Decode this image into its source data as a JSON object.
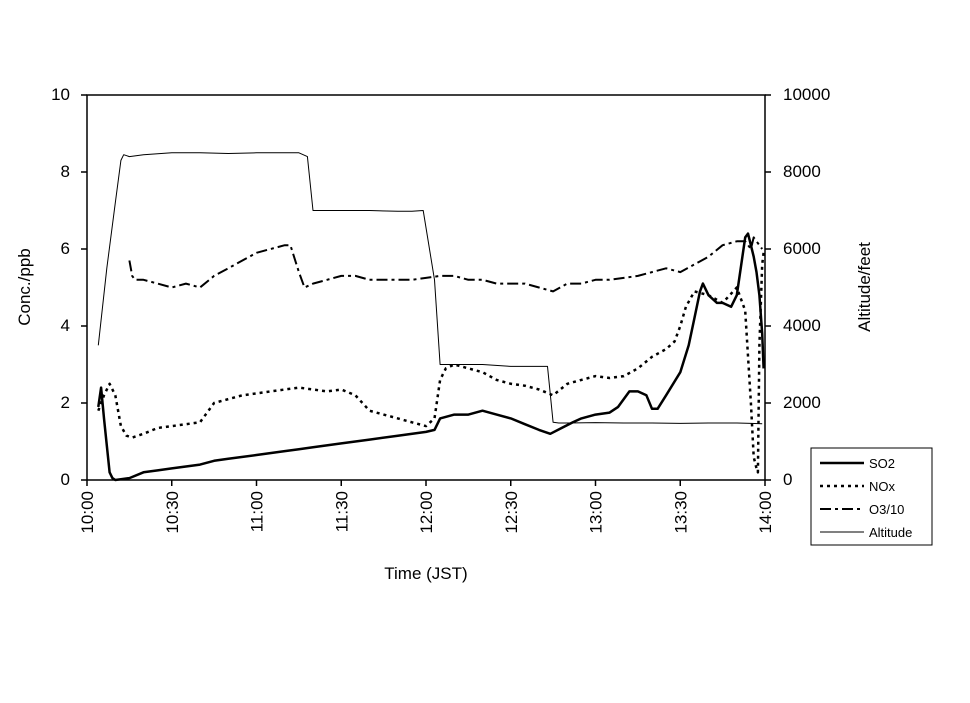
{
  "chart_data": {
    "type": "line",
    "xlabel": "Time (JST)",
    "ylabel_left": "Conc./ppb",
    "ylabel_right": "Altitude/feet",
    "x_ticks": [
      "10:00",
      "10:30",
      "11:00",
      "11:30",
      "12:00",
      "12:30",
      "13:00",
      "13:30",
      "14:00"
    ],
    "y_left_ticks": [
      "0",
      "2",
      "4",
      "6",
      "8",
      "10"
    ],
    "y_right_ticks": [
      "0",
      "2000",
      "4000",
      "6000",
      "8000",
      "10000"
    ],
    "xlim": [
      "10:00",
      "14:00"
    ],
    "ylim_left": [
      0,
      10
    ],
    "ylim_right": [
      0,
      10000
    ],
    "grid": false,
    "legend_position": "bottom-right",
    "series": [
      {
        "name": "SO2",
        "axis": "left",
        "style": "solid-thick",
        "x": [
          "10:04",
          "10:05",
          "10:06",
          "10:07",
          "10:08",
          "10:09",
          "10:10",
          "10:12",
          "10:15",
          "10:20",
          "10:25",
          "10:30",
          "10:35",
          "10:40",
          "10:45",
          "10:50",
          "11:00",
          "11:10",
          "11:15",
          "11:20",
          "11:30",
          "11:40",
          "11:50",
          "12:00",
          "12:03",
          "12:05",
          "12:10",
          "12:15",
          "12:20",
          "12:25",
          "12:30",
          "12:35",
          "12:40",
          "12:44",
          "12:48",
          "12:52",
          "12:55",
          "13:00",
          "13:05",
          "13:08",
          "13:12",
          "13:15",
          "13:18",
          "13:20",
          "13:22",
          "13:25",
          "13:30",
          "13:33",
          "13:35",
          "13:37",
          "13:38",
          "13:40",
          "13:43",
          "13:45",
          "13:48",
          "13:50",
          "13:52",
          "13:53",
          "13:54",
          "13:55",
          "13:56",
          "13:57",
          "13:58",
          "13:59",
          "13:59.5"
        ],
        "values": [
          1.9,
          2.4,
          1.6,
          0.9,
          0.2,
          0.05,
          0.0,
          0.02,
          0.05,
          0.2,
          0.25,
          0.3,
          0.35,
          0.4,
          0.5,
          0.55,
          0.65,
          0.75,
          0.8,
          0.85,
          0.95,
          1.05,
          1.15,
          1.25,
          1.3,
          1.6,
          1.7,
          1.7,
          1.8,
          1.7,
          1.6,
          1.45,
          1.3,
          1.2,
          1.35,
          1.5,
          1.6,
          1.7,
          1.75,
          1.9,
          2.3,
          2.3,
          2.2,
          1.85,
          1.85,
          2.2,
          2.8,
          3.5,
          4.2,
          4.9,
          5.1,
          4.8,
          4.6,
          4.6,
          4.5,
          4.8,
          5.8,
          6.3,
          6.4,
          6.1,
          5.8,
          5.4,
          4.8,
          3.8,
          2.9
        ]
      },
      {
        "name": "NOx",
        "axis": "left",
        "style": "dotted",
        "x": [
          "10:04",
          "10:06",
          "10:08",
          "10:10",
          "10:12",
          "10:14",
          "10:16",
          "10:20",
          "10:25",
          "10:30",
          "10:35",
          "10:40",
          "10:45",
          "10:50",
          "10:55",
          "11:00",
          "11:05",
          "11:10",
          "11:15",
          "11:20",
          "11:25",
          "11:30",
          "11:35",
          "11:40",
          "11:45",
          "11:50",
          "11:55",
          "12:00",
          "12:03",
          "12:05",
          "12:07",
          "12:10",
          "12:15",
          "12:20",
          "12:25",
          "12:30",
          "12:35",
          "12:40",
          "12:45",
          "12:50",
          "12:55",
          "13:00",
          "13:05",
          "13:10",
          "13:15",
          "13:20",
          "13:25",
          "13:28",
          "13:30",
          "13:32",
          "13:35",
          "13:40",
          "13:45",
          "13:50",
          "13:53",
          "13:55",
          "13:56",
          "13:57",
          "13:57.5",
          "13:58",
          "13:59",
          "13:59.5"
        ],
        "values": [
          1.8,
          2.2,
          2.5,
          2.2,
          1.4,
          1.15,
          1.1,
          1.2,
          1.35,
          1.4,
          1.45,
          1.5,
          2.0,
          2.1,
          2.2,
          2.25,
          2.3,
          2.35,
          2.4,
          2.35,
          2.3,
          2.35,
          2.2,
          1.8,
          1.7,
          1.6,
          1.5,
          1.4,
          1.6,
          2.6,
          2.9,
          3.0,
          2.9,
          2.8,
          2.6,
          2.5,
          2.45,
          2.35,
          2.2,
          2.5,
          2.6,
          2.7,
          2.65,
          2.7,
          2.9,
          3.2,
          3.4,
          3.6,
          4.0,
          4.5,
          4.9,
          4.8,
          4.6,
          5.0,
          4.4,
          2.0,
          0.6,
          0.3,
          0.2,
          3.5,
          5.6,
          5.9
        ]
      },
      {
        "name": "O3/10",
        "axis": "left",
        "style": "dash-dot",
        "x": [
          "10:15",
          "10:16",
          "10:17",
          "10:20",
          "10:25",
          "10:30",
          "10:35",
          "10:40",
          "10:45",
          "10:50",
          "10:55",
          "11:00",
          "11:05",
          "11:10",
          "11:12",
          "11:15",
          "11:17",
          "11:20",
          "11:25",
          "11:30",
          "11:35",
          "11:40",
          "11:45",
          "11:50",
          "11:55",
          "12:00",
          "12:05",
          "12:10",
          "12:15",
          "12:20",
          "12:25",
          "12:30",
          "12:35",
          "12:40",
          "12:45",
          "12:50",
          "12:55",
          "13:00",
          "13:05",
          "13:10",
          "13:15",
          "13:20",
          "13:25",
          "13:30",
          "13:35",
          "13:40",
          "13:45",
          "13:50",
          "13:53",
          "13:55",
          "13:56",
          "13:57",
          "13:58",
          "13:59"
        ],
        "values": [
          5.7,
          5.3,
          5.2,
          5.2,
          5.1,
          5.0,
          5.1,
          5.0,
          5.3,
          5.5,
          5.7,
          5.9,
          6.0,
          6.1,
          6.1,
          5.4,
          5.0,
          5.1,
          5.2,
          5.3,
          5.3,
          5.2,
          5.2,
          5.2,
          5.2,
          5.25,
          5.3,
          5.3,
          5.2,
          5.2,
          5.1,
          5.1,
          5.1,
          5.0,
          4.9,
          5.1,
          5.1,
          5.2,
          5.2,
          5.25,
          5.3,
          5.4,
          5.5,
          5.4,
          5.6,
          5.8,
          6.1,
          6.2,
          6.2,
          6.0,
          6.3,
          6.2,
          6.1,
          6.0
        ]
      },
      {
        "name": "Altitude",
        "axis": "right",
        "style": "solid-thin",
        "x": [
          "10:04",
          "10:07",
          "10:10",
          "10:12",
          "10:13",
          "10:15",
          "10:20",
          "10:30",
          "10:40",
          "10:50",
          "11:00",
          "11:10",
          "11:15",
          "11:18",
          "11:20",
          "11:30",
          "11:40",
          "11:50",
          "11:55",
          "11:59",
          "12:03",
          "12:05",
          "12:10",
          "12:20",
          "12:30",
          "12:40",
          "12:43",
          "12:45",
          "12:47",
          "12:50",
          "13:00",
          "13:10",
          "13:20",
          "13:30",
          "13:40",
          "13:50",
          "13:55",
          "13:59"
        ],
        "values": [
          3500,
          5500,
          7200,
          8300,
          8450,
          8400,
          8450,
          8500,
          8500,
          8480,
          8500,
          8500,
          8500,
          8400,
          7000,
          7000,
          7000,
          6980,
          6980,
          7000,
          5200,
          3000,
          3000,
          3000,
          2950,
          2950,
          2950,
          1500,
          1480,
          1480,
          1490,
          1480,
          1480,
          1470,
          1480,
          1480,
          1470,
          1460
        ]
      }
    ]
  }
}
